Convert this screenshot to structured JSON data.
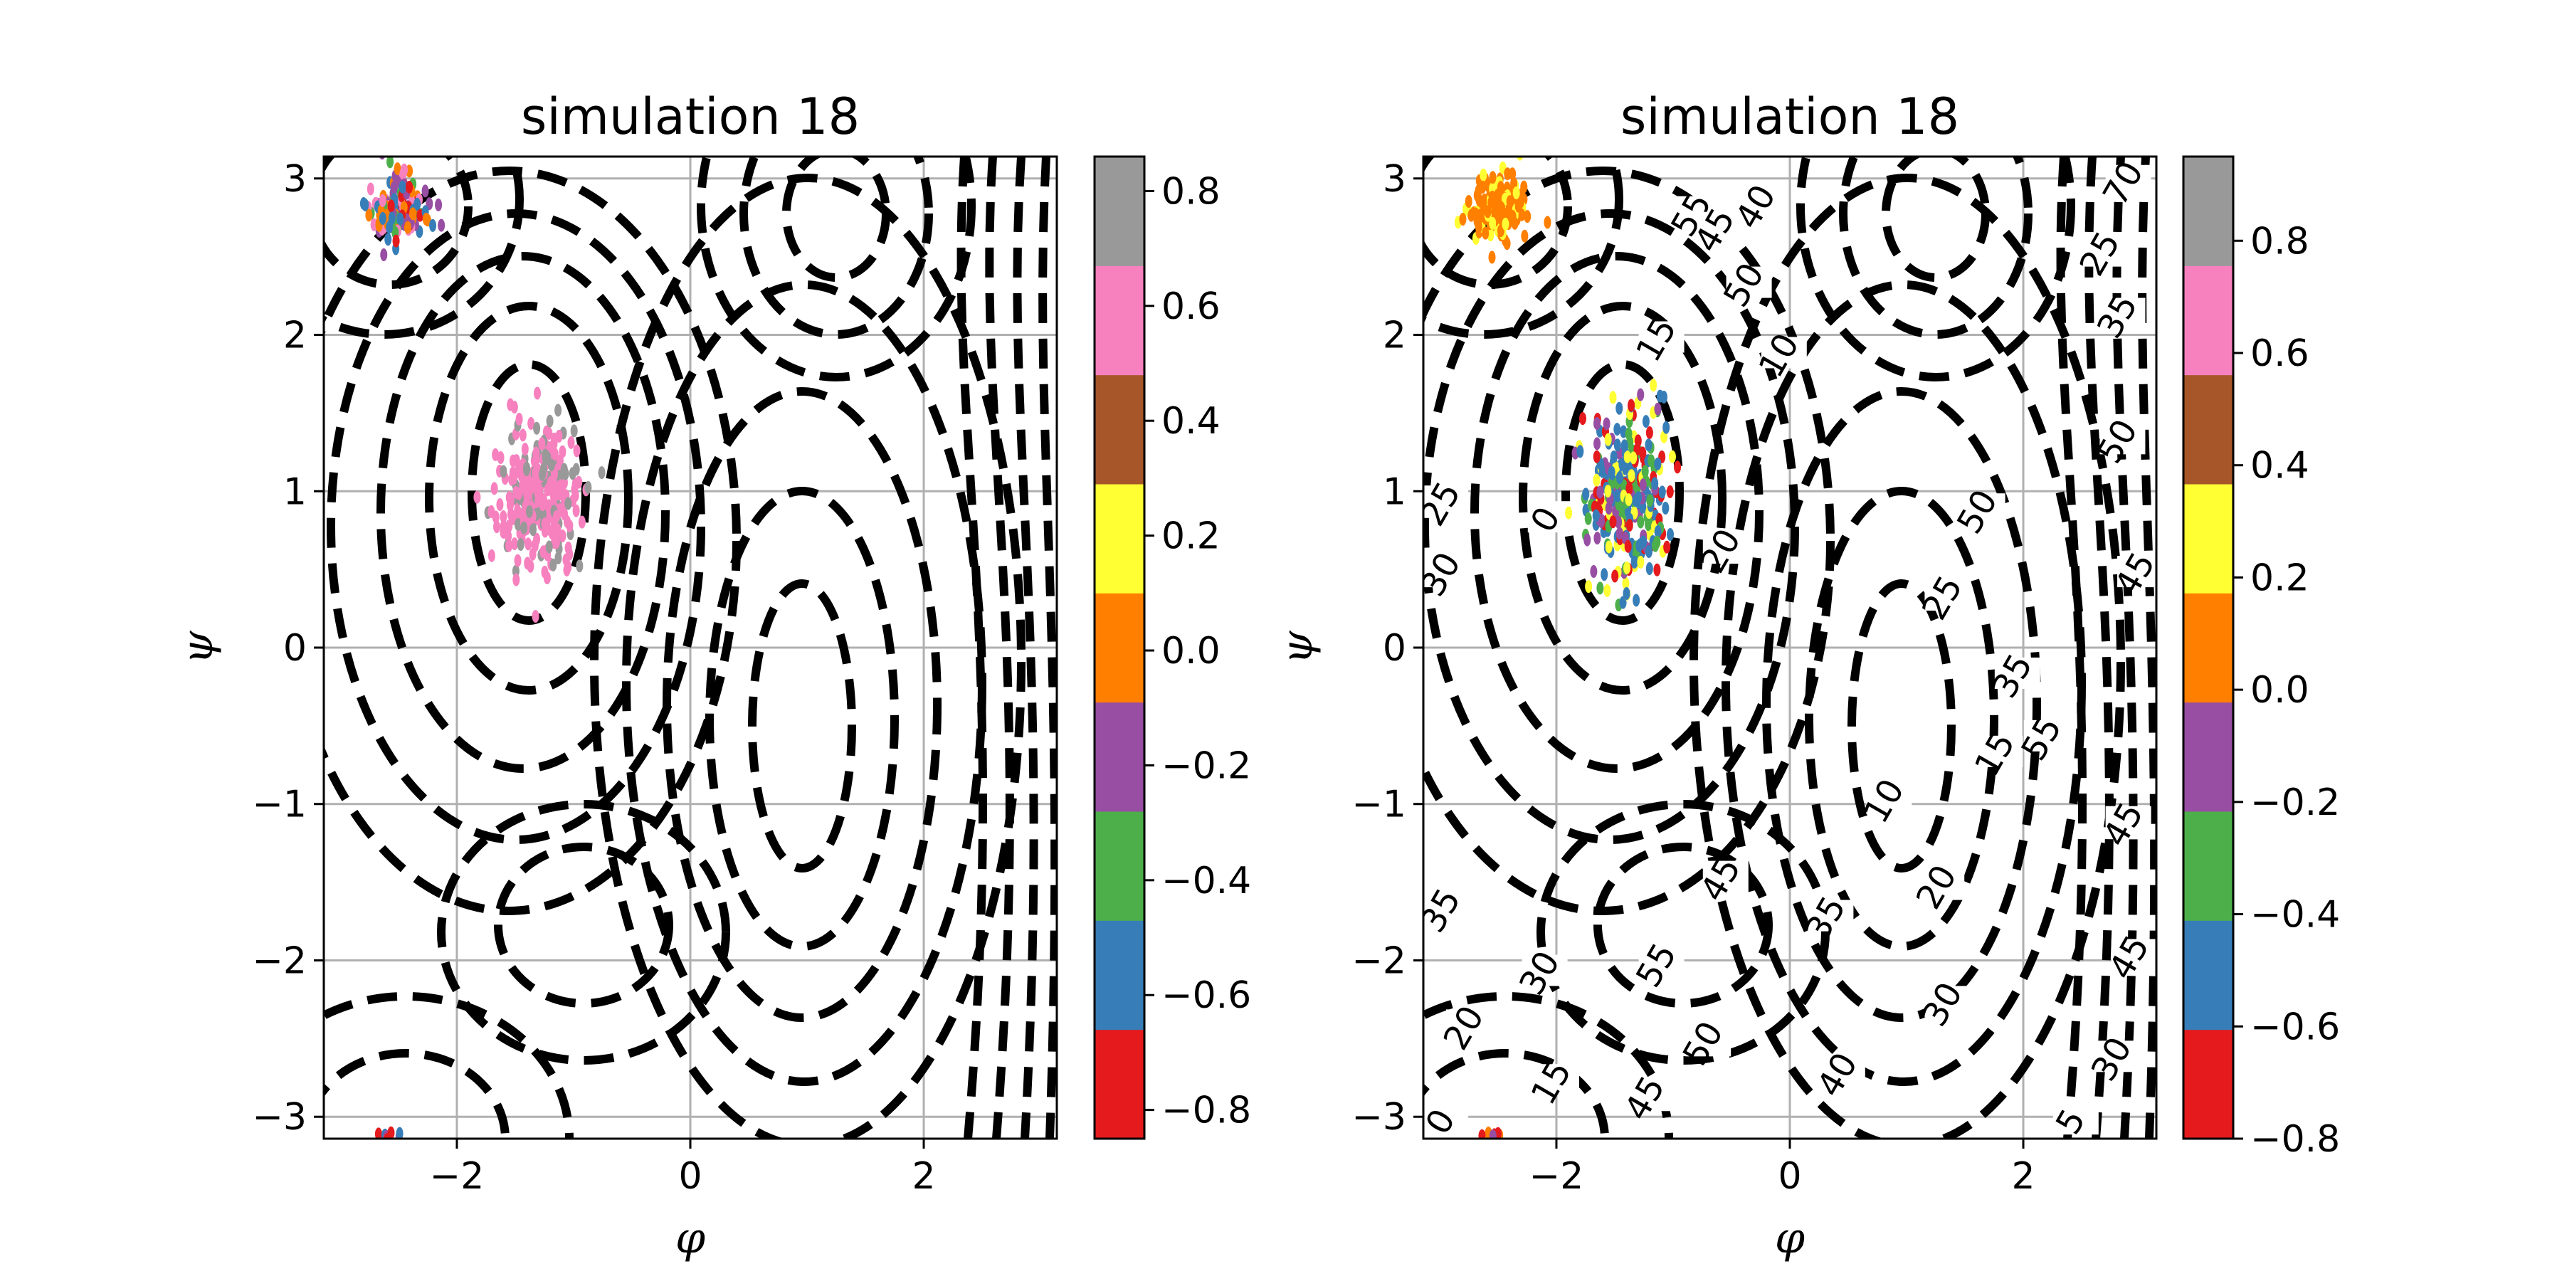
{
  "chart_data": [
    {
      "type": "scatter",
      "title": "simulation 18",
      "xlabel": "φ",
      "ylabel": "ψ",
      "xlim": [
        -3.14,
        3.14
      ],
      "ylim": [
        -3.14,
        3.14
      ],
      "xticks": [
        {
          "v": -2,
          "label": "−2"
        },
        {
          "v": 0,
          "label": "0"
        },
        {
          "v": 2,
          "label": "2"
        }
      ],
      "yticks": [
        {
          "v": -3,
          "label": "−3"
        },
        {
          "v": -2,
          "label": "−2"
        },
        {
          "v": -1,
          "label": "−1"
        },
        {
          "v": 0,
          "label": "0"
        },
        {
          "v": 1,
          "label": "1"
        },
        {
          "v": 2,
          "label": "2"
        },
        {
          "v": 3,
          "label": "3"
        }
      ],
      "grid": true,
      "contour_style": "black dashed",
      "contour_labels": [],
      "clusters": [
        {
          "center": [
            -2.5,
            2.8
          ],
          "spread": [
            0.25,
            0.22
          ],
          "n": 160,
          "colors": [
            "#4daf4a",
            "#377eb8",
            "#984ea3",
            "#e41a1c",
            "#ff7f00",
            "#f781bf"
          ]
        },
        {
          "center": [
            -1.3,
            0.95
          ],
          "spread": [
            0.35,
            0.5
          ],
          "n": 300,
          "colors": [
            "#f781bf",
            "#f781bf",
            "#f781bf",
            "#999999"
          ]
        },
        {
          "center": [
            -2.55,
            -3.12
          ],
          "spread": [
            0.12,
            0.03
          ],
          "n": 8,
          "colors": [
            "#984ea3",
            "#e41a1c",
            "#377eb8"
          ]
        }
      ],
      "colorbar": {
        "colors": [
          "#e41a1c",
          "#377eb8",
          "#4daf4a",
          "#984ea3",
          "#ff7f00",
          "#ffff33",
          "#a65628",
          "#f781bf",
          "#999999"
        ],
        "range": [
          -0.85,
          0.86
        ],
        "ticks": [
          {
            "v": -0.8,
            "label": "−0.8"
          },
          {
            "v": -0.6,
            "label": "−0.6"
          },
          {
            "v": -0.4,
            "label": "−0.4"
          },
          {
            "v": -0.2,
            "label": "−0.2"
          },
          {
            "v": 0.0,
            "label": "0.0"
          },
          {
            "v": 0.2,
            "label": "0.2"
          },
          {
            "v": 0.4,
            "label": "0.4"
          },
          {
            "v": 0.6,
            "label": "0.6"
          },
          {
            "v": 0.8,
            "label": "0.8"
          }
        ]
      }
    },
    {
      "type": "scatter",
      "title": "simulation 18",
      "xlabel": "φ",
      "ylabel": "ψ",
      "xlim": [
        -3.14,
        3.14
      ],
      "ylim": [
        -3.14,
        3.14
      ],
      "xticks": [
        {
          "v": -2,
          "label": "−2"
        },
        {
          "v": 0,
          "label": "0"
        },
        {
          "v": 2,
          "label": "2"
        }
      ],
      "yticks": [
        {
          "v": -3,
          "label": "−3"
        },
        {
          "v": -2,
          "label": "−2"
        },
        {
          "v": -1,
          "label": "−1"
        },
        {
          "v": 0,
          "label": "0"
        },
        {
          "v": 1,
          "label": "1"
        },
        {
          "v": 2,
          "label": "2"
        },
        {
          "v": 3,
          "label": "3"
        }
      ],
      "grid": true,
      "contour_style": "black dashed",
      "contour_labels": [
        {
          "text": "55",
          "x": -0.8,
          "y": 2.75
        },
        {
          "text": "45",
          "x": -0.6,
          "y": 2.65
        },
        {
          "text": "40",
          "x": -0.25,
          "y": 2.8
        },
        {
          "text": "50",
          "x": -0.35,
          "y": 2.3
        },
        {
          "text": "15",
          "x": -1.1,
          "y": 1.95
        },
        {
          "text": "10",
          "x": -0.05,
          "y": 1.85
        },
        {
          "text": "25",
          "x": -2.95,
          "y": 0.9
        },
        {
          "text": "30",
          "x": -2.95,
          "y": 0.45
        },
        {
          "text": "0",
          "x": -2.05,
          "y": 0.8
        },
        {
          "text": "20",
          "x": -0.55,
          "y": 0.6
        },
        {
          "text": "50",
          "x": 1.65,
          "y": 0.85
        },
        {
          "text": "25",
          "x": 1.35,
          "y": 0.3
        },
        {
          "text": "35",
          "x": 1.95,
          "y": -0.2
        },
        {
          "text": "15",
          "x": 1.8,
          "y": -0.7
        },
        {
          "text": "55",
          "x": 2.2,
          "y": -0.6
        },
        {
          "text": "10",
          "x": 0.85,
          "y": -1.0
        },
        {
          "text": "45",
          "x": -0.55,
          "y": -1.5
        },
        {
          "text": "20",
          "x": 1.3,
          "y": -1.55
        },
        {
          "text": "35",
          "x": 0.35,
          "y": -1.75
        },
        {
          "text": "35",
          "x": -2.95,
          "y": -1.7
        },
        {
          "text": "30",
          "x": -2.1,
          "y": -2.1
        },
        {
          "text": "55",
          "x": -1.1,
          "y": -2.05
        },
        {
          "text": "30",
          "x": 1.35,
          "y": -2.3
        },
        {
          "text": "40",
          "x": 0.45,
          "y": -2.75
        },
        {
          "text": "20",
          "x": -2.75,
          "y": -2.45
        },
        {
          "text": "15",
          "x": -2.0,
          "y": -2.8
        },
        {
          "text": "50",
          "x": -0.7,
          "y": -2.55
        },
        {
          "text": "45",
          "x": -1.2,
          "y": -2.9
        },
        {
          "text": "0",
          "x": -2.95,
          "y": -3.05
        },
        {
          "text": "70",
          "x": 2.9,
          "y": 2.95
        },
        {
          "text": "25",
          "x": 2.7,
          "y": 2.5
        },
        {
          "text": "35",
          "x": 2.85,
          "y": 2.1
        },
        {
          "text": "50",
          "x": 2.85,
          "y": 1.3
        },
        {
          "text": "45",
          "x": 3.0,
          "y": 0.45
        },
        {
          "text": "45",
          "x": 2.9,
          "y": -1.15
        },
        {
          "text": "45",
          "x": 2.95,
          "y": -2.0
        },
        {
          "text": "30",
          "x": 2.8,
          "y": -2.65
        },
        {
          "text": "5",
          "x": 2.45,
          "y": -3.05
        }
      ],
      "clusters": [
        {
          "center": [
            -2.5,
            2.8
          ],
          "spread": [
            0.25,
            0.2
          ],
          "n": 170,
          "colors": [
            "#ff7f00",
            "#ff7f00",
            "#ff7f00",
            "#ffff33"
          ]
        },
        {
          "center": [
            -1.4,
            0.95
          ],
          "spread": [
            0.35,
            0.55
          ],
          "n": 320,
          "colors": [
            "#377eb8",
            "#377eb8",
            "#e41a1c",
            "#4daf4a",
            "#984ea3",
            "#ffff33"
          ]
        },
        {
          "center": [
            -2.55,
            -3.12
          ],
          "spread": [
            0.12,
            0.03
          ],
          "n": 8,
          "colors": [
            "#984ea3",
            "#ff7f00",
            "#e41a1c"
          ]
        }
      ],
      "colorbar": {
        "colors": [
          "#e41a1c",
          "#377eb8",
          "#4daf4a",
          "#984ea3",
          "#ff7f00",
          "#ffff33",
          "#a65628",
          "#f781bf",
          "#999999"
        ],
        "range": [
          -0.8,
          0.95
        ],
        "ticks": [
          {
            "v": -0.8,
            "label": "−0.8"
          },
          {
            "v": -0.6,
            "label": "−0.6"
          },
          {
            "v": -0.4,
            "label": "−0.4"
          },
          {
            "v": -0.2,
            "label": "−0.2"
          },
          {
            "v": 0.0,
            "label": "0.0"
          },
          {
            "v": 0.2,
            "label": "0.2"
          },
          {
            "v": 0.4,
            "label": "0.4"
          },
          {
            "v": 0.6,
            "label": "0.6"
          },
          {
            "v": 0.8,
            "label": "0.8"
          }
        ]
      }
    }
  ]
}
